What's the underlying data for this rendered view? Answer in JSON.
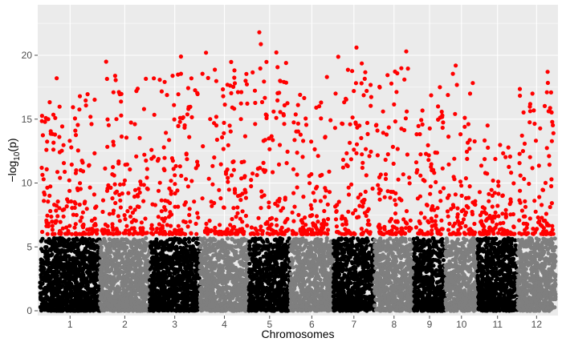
{
  "chart_data": {
    "type": "scatter",
    "subtype": "manhattan",
    "title": "",
    "xlabel": "Chromosomes",
    "ylabel_parts": {
      "prefix": "−log",
      "subscript": "10",
      "suffix": "(p)"
    },
    "ylim": [
      0,
      23
    ],
    "yticks": [
      0,
      5,
      10,
      15,
      20
    ],
    "threshold": 5.8,
    "grid": true,
    "legend": "none",
    "chromosomes": [
      {
        "label": "1",
        "start": 0,
        "length": 43.3,
        "max": 18.2,
        "color": "black"
      },
      {
        "label": "2",
        "start": 43.3,
        "length": 35.9,
        "max": 19.5,
        "color": "gray"
      },
      {
        "label": "3",
        "start": 79.2,
        "length": 36.4,
        "max": 19.9,
        "color": "black"
      },
      {
        "label": "4",
        "start": 115.6,
        "length": 35.5,
        "max": 20.2,
        "color": "gray"
      },
      {
        "label": "5",
        "start": 151.1,
        "length": 29.9,
        "max": 21.8,
        "color": "black"
      },
      {
        "label": "6",
        "start": 181.0,
        "length": 31.2,
        "max": 18.3,
        "color": "gray"
      },
      {
        "label": "7",
        "start": 212.2,
        "length": 29.7,
        "max": 20.6,
        "color": "black"
      },
      {
        "label": "8",
        "start": 241.9,
        "length": 28.4,
        "max": 20.3,
        "color": "gray"
      },
      {
        "label": "9",
        "start": 270.3,
        "length": 23.0,
        "max": 17.5,
        "color": "black"
      },
      {
        "label": "10",
        "start": 293.3,
        "length": 23.2,
        "max": 19.2,
        "color": "gray"
      },
      {
        "label": "11",
        "start": 316.5,
        "length": 29.0,
        "max": 14.5,
        "color": "black"
      },
      {
        "label": "12",
        "start": 345.5,
        "length": 27.5,
        "max": 18.7,
        "color": "gray"
      }
    ],
    "colors": {
      "significant": "#ff0000",
      "black": "#000000",
      "gray": "#7f7f7f",
      "panel": "#ebebeb",
      "grid": "#ffffff",
      "tick": "#4d4d4d",
      "text": "#000000"
    }
  }
}
